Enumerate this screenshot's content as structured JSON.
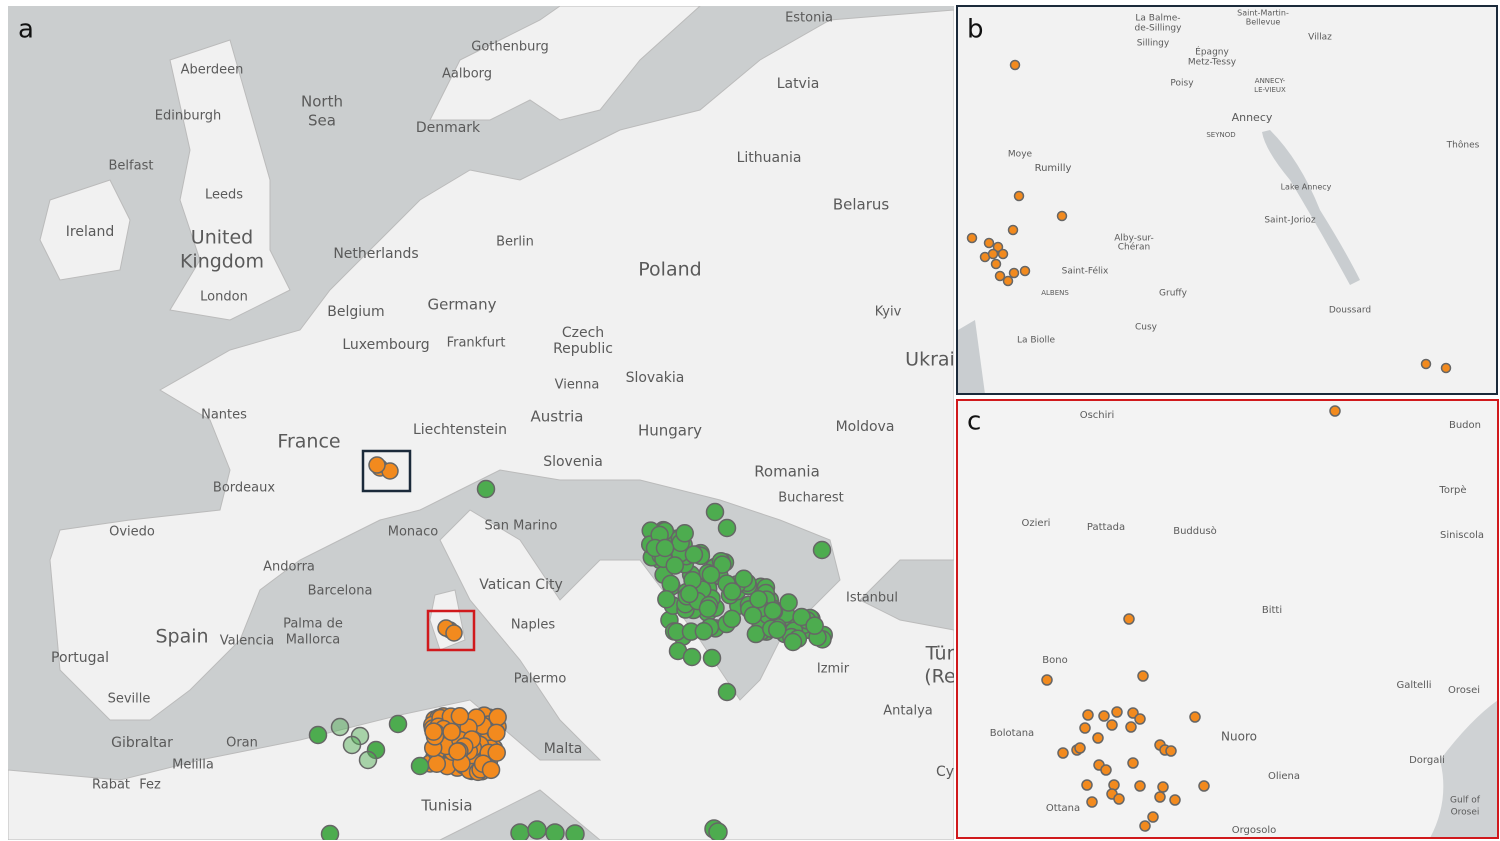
{
  "panels": [
    {
      "letter": "a",
      "labels": [
        "Estonia",
        "Gothenburg",
        "Aberdeen",
        "Aalborg",
        "North",
        "Sea",
        "Latvia",
        "Edinburgh",
        "Denmark",
        "Lithuania",
        "Belfast",
        "Leeds",
        "Belarus",
        "Ireland",
        "United",
        "Kingdom",
        "Berlin",
        "Netherlands",
        "Poland",
        "London",
        "Germany",
        "Belgium",
        "Kyiv",
        "Czech",
        "Republic",
        "Frankfurt",
        "Luxembourg",
        "Ukrai",
        "Vienna",
        "Slovakia",
        "Nantes",
        "Austria",
        "Moldova",
        "Liechtenstein",
        "Hungary",
        "France",
        "Slovenia",
        "Romania",
        "Bordeaux",
        "Bucharest",
        "San Marino",
        "Monaco",
        "Oviedo",
        "Andorra",
        "Barcelona",
        "Vatican City",
        "Istanbul",
        "Spain",
        "Palma de",
        "Mallorca",
        "Valencia",
        "Naples",
        "Tür",
        "(Re",
        "Portugal",
        "Izmir",
        "Palermo",
        "Seville",
        "Antalya",
        "Gibraltar",
        "Oran",
        "Malta",
        "Melilla",
        "Cy",
        "Rabat",
        "Fez",
        "Tunisia"
      ]
    },
    {
      "letter": "b",
      "labels": [
        "La Balme-",
        "de-Sillingy",
        "Sillingy",
        "Saint-Martin-",
        "Bellevue",
        "Villaz",
        "Épagny",
        "Metz-Tessy",
        "Poisy",
        "ANNECY-",
        "LE-VIEUX",
        "Annecy",
        "SEYNOD",
        "Thônes",
        "Moye",
        "Rumilly",
        "Lake Annecy",
        "Saint-Jorioz",
        "Alby-sur-",
        "Chéran",
        "Saint-Félix",
        "ALBENS",
        "Gruffy",
        "Doussard",
        "Cusy",
        "La Biolle"
      ]
    },
    {
      "letter": "c",
      "labels": [
        "Oschiri",
        "Budon",
        "Torpè",
        "Ozieri",
        "Pattada",
        "Buddusò",
        "Siniscola",
        "Bitti",
        "Bono",
        "Galtelli",
        "Orosei",
        "Bolotana",
        "Nuoro",
        "Dorgali",
        "Oliena",
        "Ottana",
        "Gulf of",
        "Orosei",
        "Orgosolo"
      ]
    }
  ]
}
